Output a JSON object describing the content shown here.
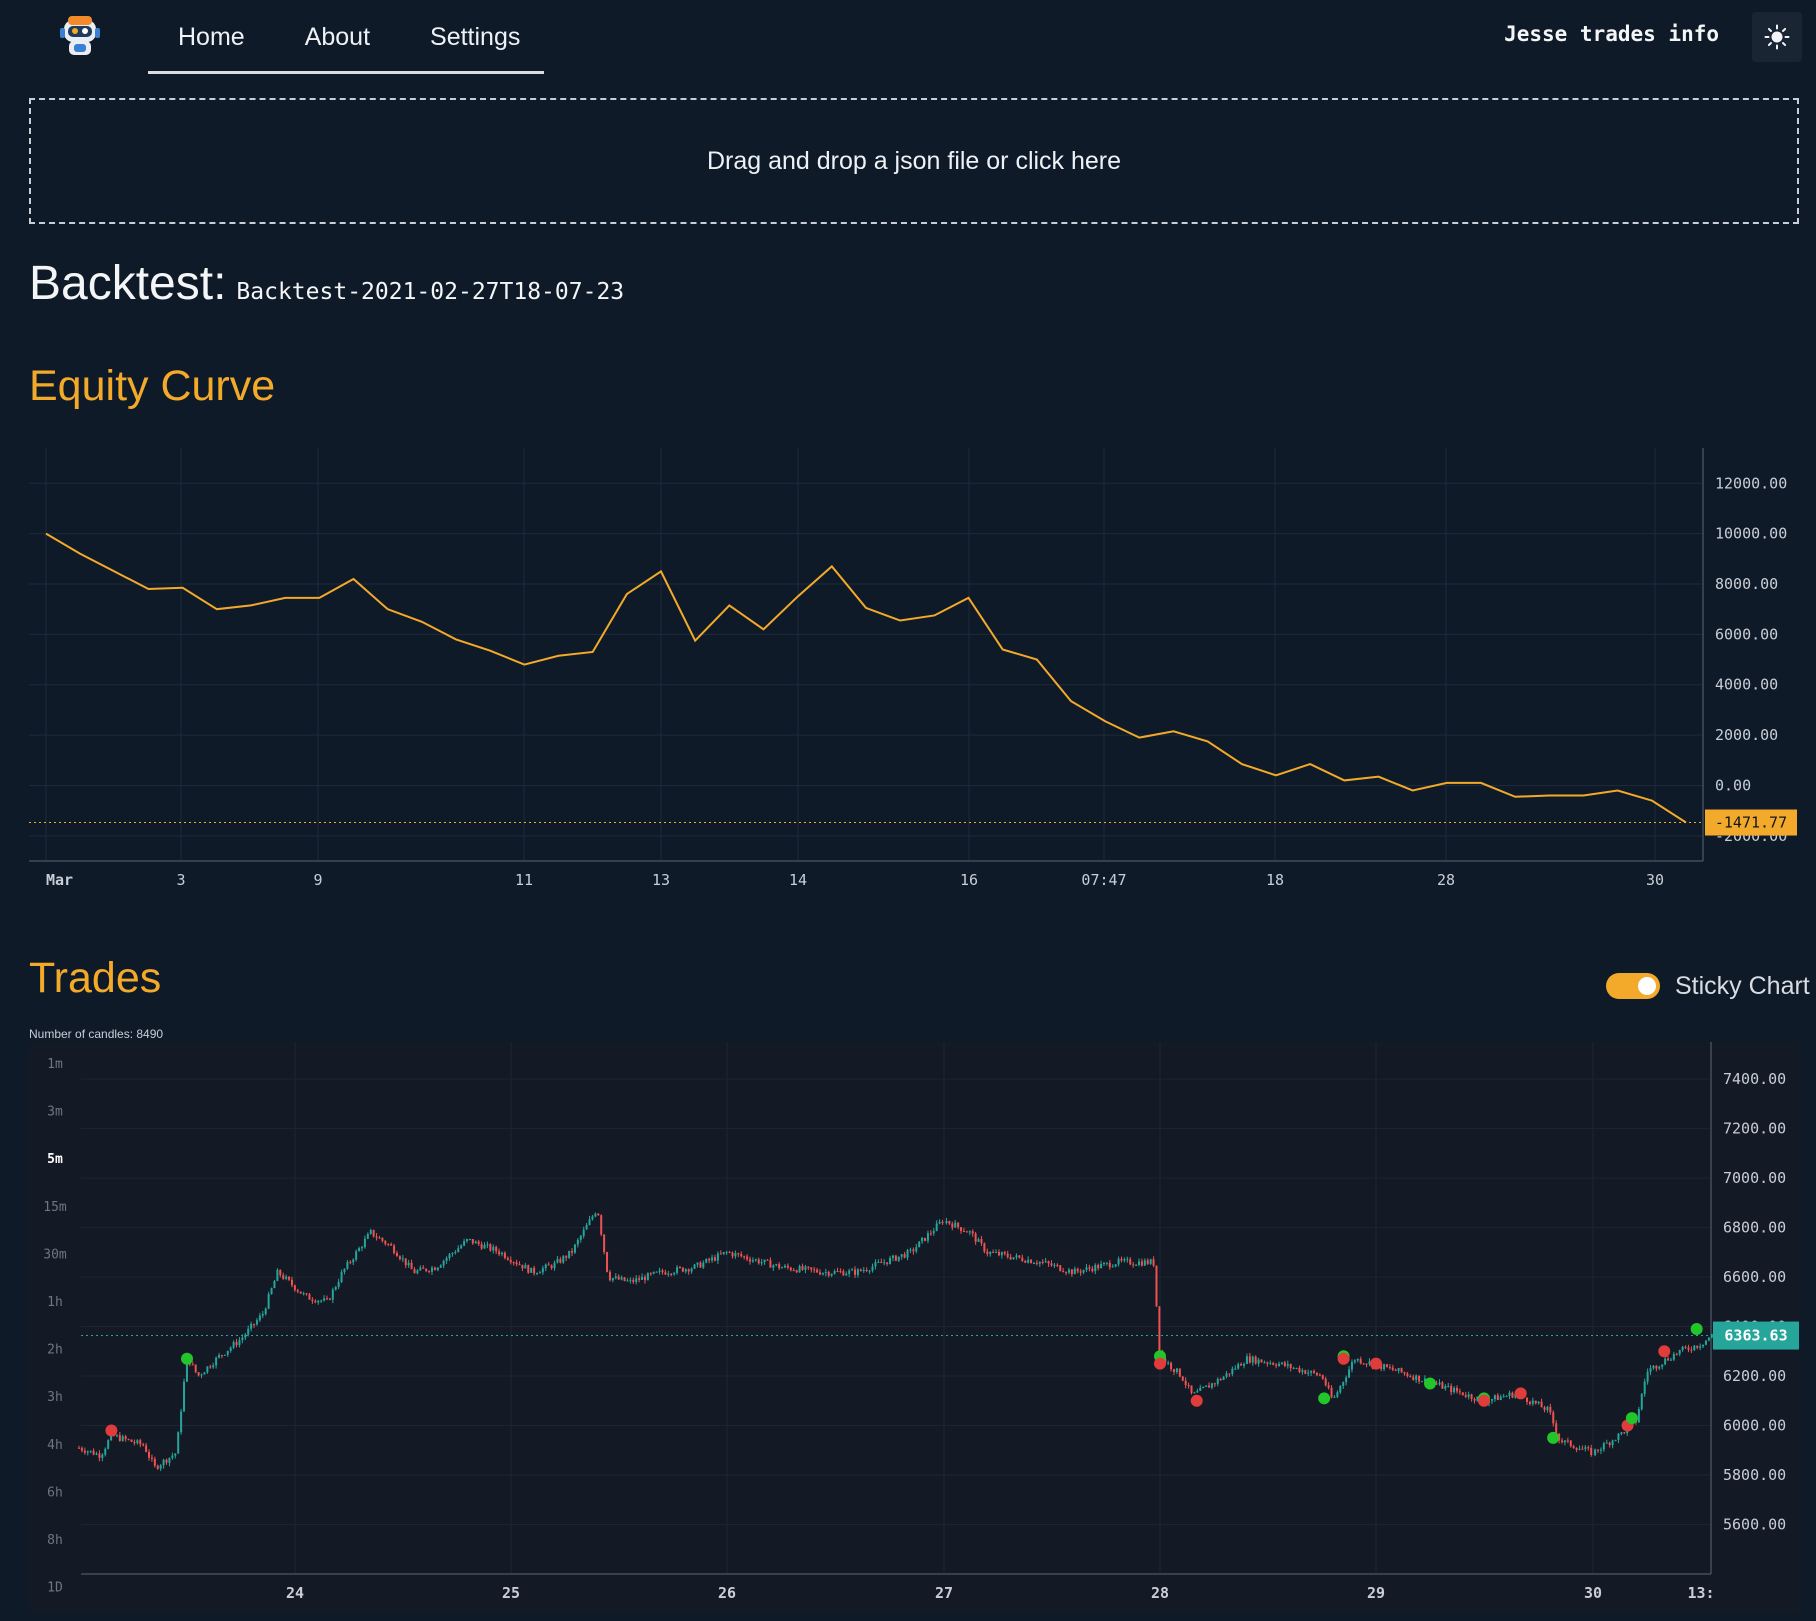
{
  "nav": {
    "items": [
      {
        "label": "Home"
      },
      {
        "label": "About"
      },
      {
        "label": "Settings"
      }
    ],
    "brand": "Jesse trades info",
    "theme_icon": "sun-icon"
  },
  "dropzone": {
    "text": "Drag and drop a json file or click here"
  },
  "backtest": {
    "heading": "Backtest:",
    "id": "Backtest-2021-02-27T18-07-23"
  },
  "equity_section": {
    "title": "Equity Curve"
  },
  "trades_section": {
    "title": "Trades",
    "sticky_label": "Sticky Chart",
    "sticky_on": true,
    "candles_text": "Number of candles: 8490",
    "timeframes": [
      "1m",
      "3m",
      "5m",
      "15m",
      "30m",
      "1h",
      "2h",
      "3h",
      "4h",
      "6h",
      "8h",
      "1D"
    ],
    "active_timeframe": "5m"
  },
  "colors": {
    "accent": "#f3a929",
    "background": "#0f1a28",
    "chart_bg": "#131a26",
    "candle_up": "#26a69a",
    "candle_down": "#ef5350",
    "long_marker": "#22c52a",
    "short_marker": "#e03c3c",
    "last_price_tag": "#26a69a"
  },
  "chart_data": [
    {
      "type": "line",
      "title": "",
      "x_tick_labels": [
        "Mar",
        "3",
        "9",
        "11",
        "13",
        "14",
        "16",
        "07:47",
        "18",
        "28",
        "30"
      ],
      "y_tick_labels": [
        "12000.00",
        "10000.00",
        "8000.00",
        "6000.00",
        "4000.00",
        "2000.00",
        "0.00",
        "-2000.00"
      ],
      "ylim": [
        -3000,
        13400
      ],
      "series": [
        {
          "values": [
            10000,
            9200,
            8500,
            7800,
            7850,
            7000,
            7150,
            7450,
            7450,
            8200,
            7000,
            6500,
            5800,
            5350,
            4800,
            5150,
            5300,
            7600,
            8500,
            5750,
            7150,
            6200,
            7500,
            8700,
            7050,
            6550,
            6750,
            7450,
            5400,
            5000,
            3350,
            2550,
            1900,
            2150,
            1750,
            850,
            400,
            850,
            200,
            350,
            -200,
            100,
            100,
            -450,
            -400,
            -400,
            -200,
            -600,
            -1471.77
          ]
        }
      ],
      "last_value_label": "-1471.77",
      "grid": true
    },
    {
      "type": "candlestick",
      "x_tick_labels": [
        "24",
        "25",
        "26",
        "27",
        "28",
        "29",
        "30",
        "13:"
      ],
      "y_tick_labels": [
        "7400.00",
        "7200.00",
        "7000.00",
        "6800.00",
        "6600.00",
        "6400.00",
        "6200.00",
        "6000.00",
        "5800.00",
        "5600.00"
      ],
      "ylim": [
        5400,
        7550
      ],
      "candle_count": 8490,
      "last_price": 6363.63,
      "last_price_label": "6363.63",
      "price_path": [
        {
          "t": 23.0,
          "p": 5910
        },
        {
          "t": 23.1,
          "p": 5880
        },
        {
          "t": 23.15,
          "p": 5960
        },
        {
          "t": 23.3,
          "p": 5920
        },
        {
          "t": 23.35,
          "p": 5830
        },
        {
          "t": 23.45,
          "p": 5890
        },
        {
          "t": 23.5,
          "p": 6280
        },
        {
          "t": 23.55,
          "p": 6200
        },
        {
          "t": 23.65,
          "p": 6280
        },
        {
          "t": 23.75,
          "p": 6350
        },
        {
          "t": 23.85,
          "p": 6450
        },
        {
          "t": 23.92,
          "p": 6620
        },
        {
          "t": 24.05,
          "p": 6520
        },
        {
          "t": 24.15,
          "p": 6500
        },
        {
          "t": 24.22,
          "p": 6620
        },
        {
          "t": 24.35,
          "p": 6780
        },
        {
          "t": 24.45,
          "p": 6720
        },
        {
          "t": 24.55,
          "p": 6620
        },
        {
          "t": 24.65,
          "p": 6640
        },
        {
          "t": 24.8,
          "p": 6750
        },
        {
          "t": 24.95,
          "p": 6700
        },
        {
          "t": 25.1,
          "p": 6620
        },
        {
          "t": 25.2,
          "p": 6650
        },
        {
          "t": 25.28,
          "p": 6700
        },
        {
          "t": 25.4,
          "p": 6880
        },
        {
          "t": 25.45,
          "p": 6600
        },
        {
          "t": 25.55,
          "p": 6580
        },
        {
          "t": 25.7,
          "p": 6620
        },
        {
          "t": 25.85,
          "p": 6640
        },
        {
          "t": 26.0,
          "p": 6700
        },
        {
          "t": 26.25,
          "p": 6640
        },
        {
          "t": 26.45,
          "p": 6620
        },
        {
          "t": 26.6,
          "p": 6620
        },
        {
          "t": 26.85,
          "p": 6700
        },
        {
          "t": 27.0,
          "p": 6830
        },
        {
          "t": 27.12,
          "p": 6780
        },
        {
          "t": 27.2,
          "p": 6700
        },
        {
          "t": 27.45,
          "p": 6660
        },
        {
          "t": 27.6,
          "p": 6620
        },
        {
          "t": 27.8,
          "p": 6660
        },
        {
          "t": 27.97,
          "p": 6660
        },
        {
          "t": 28.0,
          "p": 6280
        },
        {
          "t": 28.1,
          "p": 6200
        },
        {
          "t": 28.15,
          "p": 6120
        },
        {
          "t": 28.3,
          "p": 6200
        },
        {
          "t": 28.4,
          "p": 6270
        },
        {
          "t": 28.55,
          "p": 6250
        },
        {
          "t": 28.75,
          "p": 6200
        },
        {
          "t": 28.8,
          "p": 6100
        },
        {
          "t": 28.9,
          "p": 6270
        },
        {
          "t": 29.1,
          "p": 6220
        },
        {
          "t": 29.3,
          "p": 6160
        },
        {
          "t": 29.5,
          "p": 6100
        },
        {
          "t": 29.65,
          "p": 6130
        },
        {
          "t": 29.8,
          "p": 6060
        },
        {
          "t": 29.85,
          "p": 5940
        },
        {
          "t": 30.0,
          "p": 5890
        },
        {
          "t": 30.12,
          "p": 5960
        },
        {
          "t": 30.2,
          "p": 6020
        },
        {
          "t": 30.25,
          "p": 6220
        },
        {
          "t": 30.4,
          "p": 6300
        },
        {
          "t": 30.5,
          "p": 6330
        },
        {
          "t": 30.55,
          "p": 6363.63
        }
      ],
      "trade_markers": [
        {
          "t": 23.15,
          "p": 5980,
          "side": "short"
        },
        {
          "t": 23.5,
          "p": 6270,
          "side": "long"
        },
        {
          "t": 28.0,
          "p": 6280,
          "side": "long"
        },
        {
          "t": 28.0,
          "p": 6250,
          "side": "short"
        },
        {
          "t": 28.17,
          "p": 6100,
          "side": "short"
        },
        {
          "t": 28.76,
          "p": 6110,
          "side": "long"
        },
        {
          "t": 28.85,
          "p": 6280,
          "side": "long"
        },
        {
          "t": 28.85,
          "p": 6270,
          "side": "short"
        },
        {
          "t": 29.0,
          "p": 6250,
          "side": "short"
        },
        {
          "t": 29.25,
          "p": 6170,
          "side": "long"
        },
        {
          "t": 29.5,
          "p": 6110,
          "side": "long"
        },
        {
          "t": 29.5,
          "p": 6100,
          "side": "short"
        },
        {
          "t": 29.67,
          "p": 6130,
          "side": "short"
        },
        {
          "t": 29.82,
          "p": 5950,
          "side": "long"
        },
        {
          "t": 30.16,
          "p": 6000,
          "side": "short"
        },
        {
          "t": 30.18,
          "p": 6030,
          "side": "long"
        },
        {
          "t": 30.33,
          "p": 6300,
          "side": "short"
        },
        {
          "t": 30.48,
          "p": 6390,
          "side": "long"
        }
      ]
    }
  ]
}
